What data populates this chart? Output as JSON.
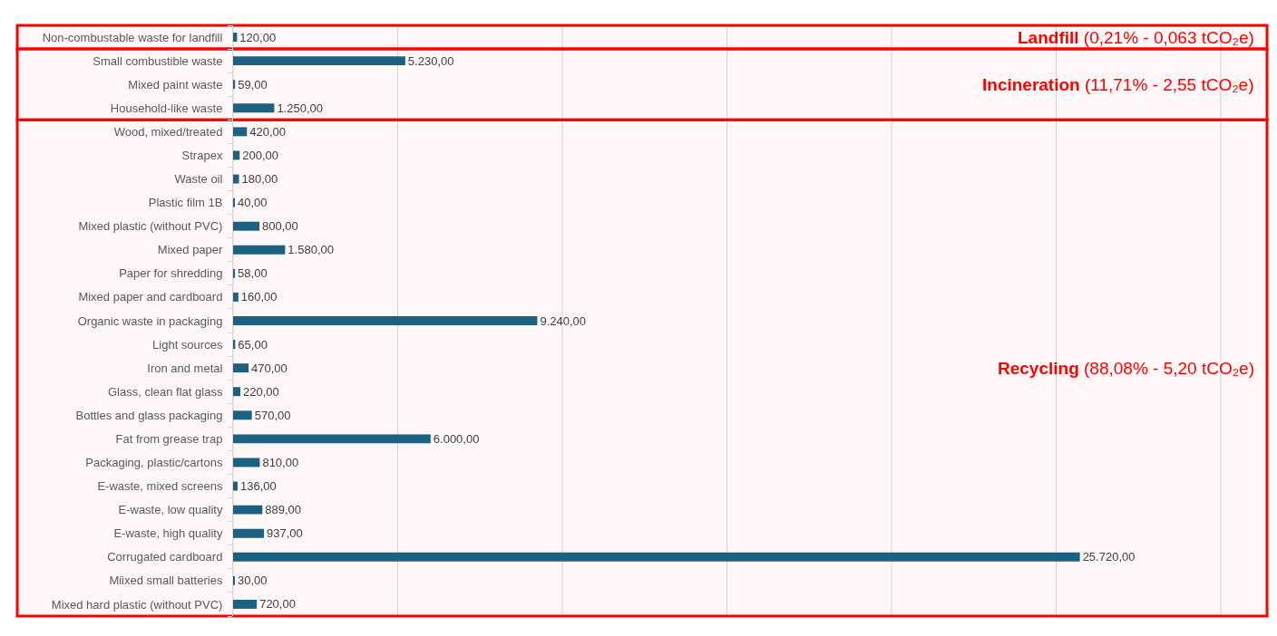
{
  "chart_data": {
    "type": "bar",
    "orientation": "horizontal",
    "categories": [
      "Non-combustable waste for landfill",
      "Small combustible waste",
      "Mixed paint waste",
      "Household-like waste",
      "Wood, mixed/treated",
      "Strapex",
      "Waste oil",
      "Plastic film 1B",
      "Mixed plastic (without PVC)",
      "Mixed paper",
      "Paper for shredding",
      "Mixed paper and cardboard",
      "Organic waste in packaging",
      "Light sources",
      "Iron and metal",
      "Glass, clean flat glass",
      "Bottles and glass packaging",
      "Fat from grease trap",
      "Packaging, plastic/cartons",
      "E-waste, mixed screens",
      "E-waste, low quality",
      "E-waste, high quality",
      "Corrugated cardboard",
      "Miixed small batteries",
      "Mixed hard plastic (without PVC)"
    ],
    "values": [
      120,
      5230,
      59,
      1250,
      420,
      200,
      180,
      40,
      800,
      1580,
      58,
      160,
      9240,
      65,
      470,
      220,
      570,
      6000,
      810,
      136,
      889,
      937,
      25720,
      30,
      720
    ],
    "value_labels": [
      "120,00",
      "5.230,00",
      "59,00",
      "1.250,00",
      "420,00",
      "200,00",
      "180,00",
      "40,00",
      "800,00",
      "1.580,00",
      "58,00",
      "160,00",
      "9.240,00",
      "65,00",
      "470,00",
      "220,00",
      "570,00",
      "6.000,00",
      "810,00",
      "136,00",
      "889,00",
      "937,00",
      "25.720,00",
      "30,00",
      "720,00"
    ],
    "color": "#1b6282",
    "xlim": [
      0,
      30000
    ],
    "xticks": [
      {
        "value": 0,
        "label": null
      },
      {
        "value": 5000,
        "label": null
      },
      {
        "value": 10000,
        "label": null
      },
      {
        "value": 15000,
        "label": null
      },
      {
        "value": 20000,
        "label": null
      },
      {
        "value": 25000,
        "label": null
      },
      {
        "value": 30000,
        "label": null
      }
    ],
    "tick_labels": "y",
    "grid": "x",
    "bands": [
      {
        "axis": "y",
        "from": "Non-combustable waste for landfill",
        "to": "Non-combustable waste for landfill",
        "label": "Landfill (0,21% - 0,063 tCO₂e)",
        "color": "#ff0000"
      },
      {
        "axis": "y",
        "from": "Small combustible waste",
        "to": "Household-like waste",
        "label": "Incineration (11,71% - 2,55 tCO₂e)",
        "color": "#ff0000"
      },
      {
        "axis": "y",
        "from": "Wood, mixed/treated",
        "to": "Mixed hard plastic (without PVC)",
        "label": "Recycling (88,08% - 5,20 tCO₂e)",
        "color": "#ff0000"
      }
    ]
  }
}
